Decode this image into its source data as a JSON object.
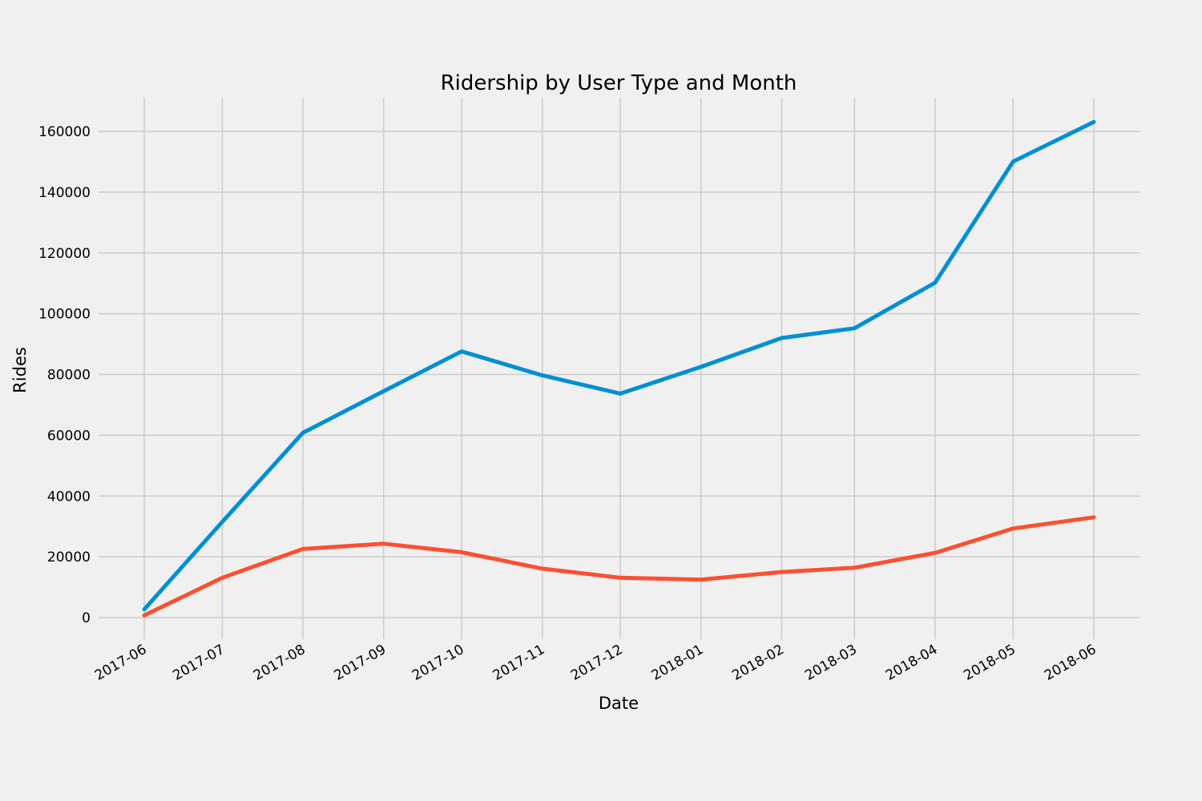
{
  "chart_data": {
    "type": "line",
    "title": "Ridership by User Type and Month",
    "xlabel": "Date",
    "ylabel": "Rides",
    "x": [
      "2017-06",
      "2017-07",
      "2017-08",
      "2017-09",
      "2017-10",
      "2017-11",
      "2017-12",
      "2018-01",
      "2018-02",
      "2018-03",
      "2018-04",
      "2018-05",
      "2018-06"
    ],
    "x_tick_labels": [
      "2017-06",
      "2017-07",
      "2017-08",
      "2017-09",
      "2017-10",
      "2017-11",
      "2017-12",
      "2018-01",
      "2018-02",
      "2018-03",
      "2018-04",
      "2018-05",
      "2018-06"
    ],
    "ylim": [
      -7500,
      171000
    ],
    "y_ticks": [
      0,
      20000,
      40000,
      60000,
      80000,
      100000,
      120000,
      140000,
      160000
    ],
    "y_tick_labels": [
      "0",
      "20000",
      "40000",
      "60000",
      "80000",
      "100000",
      "120000",
      "140000",
      "160000"
    ],
    "grid": true,
    "series": [
      {
        "color": "#008fd5",
        "values": [
          2700,
          31500,
          60800,
          74500,
          87600,
          79700,
          73700,
          82500,
          92000,
          95200,
          110200,
          150100,
          163100
        ]
      },
      {
        "color": "#fc4f30",
        "values": [
          700,
          13100,
          22600,
          24300,
          21500,
          16100,
          13100,
          12500,
          15000,
          16400,
          21300,
          29300,
          33000
        ]
      }
    ]
  }
}
